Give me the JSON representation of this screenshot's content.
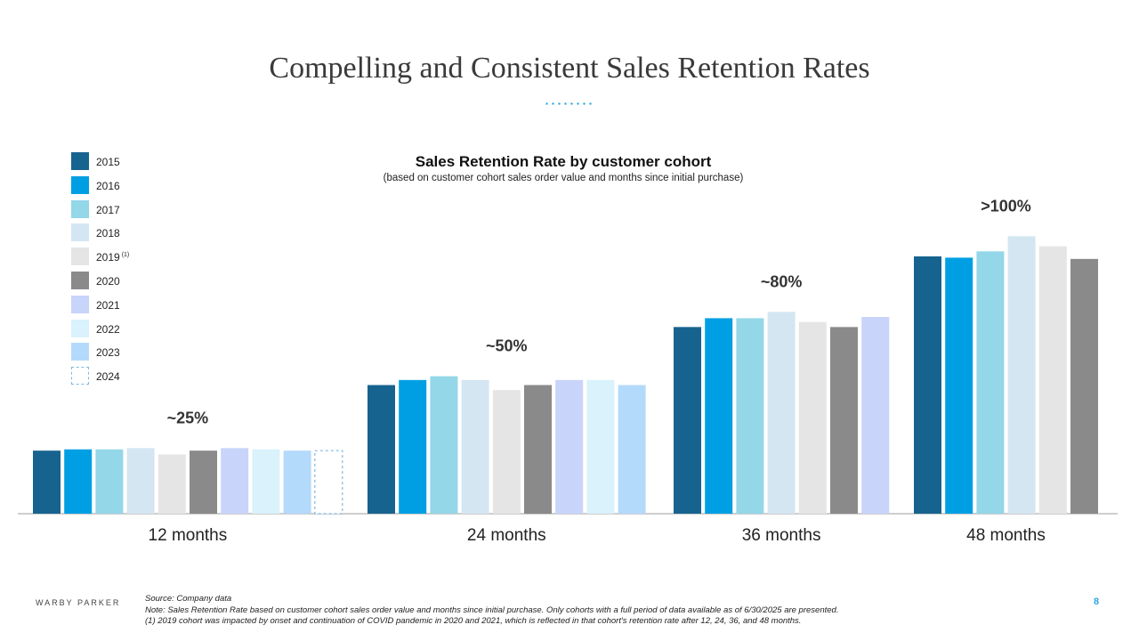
{
  "page_title": "Compelling and Consistent Sales Retention Rates",
  "chart_data": {
    "type": "bar",
    "title": "Sales Retention Rate by customer cohort",
    "subtitle": "(based on customer cohort sales order value and months since initial purchase)",
    "xlabel": "",
    "ylabel": "",
    "ylim": [
      0,
      120
    ],
    "grid": false,
    "legend_position": "left",
    "categories": [
      "12 months",
      "24 months",
      "36 months",
      "48 months"
    ],
    "group_labels": [
      "~25%",
      "~50%",
      "~80%",
      ">100%"
    ],
    "series": [
      {
        "name": "2015",
        "color": "#17638f",
        "values": [
          25,
          51,
          74,
          102
        ]
      },
      {
        "name": "2016",
        "color": "#009fe3",
        "values": [
          25.5,
          53,
          77.5,
          101.5
        ]
      },
      {
        "name": "2017",
        "color": "#93d7e8",
        "values": [
          25.5,
          54.5,
          77.5,
          104
        ]
      },
      {
        "name": "2018",
        "color": "#d4e6f2",
        "values": [
          26,
          53,
          80,
          110
        ]
      },
      {
        "name": "2019",
        "note": "(1)",
        "color": "#e5e5e5",
        "values": [
          23.5,
          49,
          76,
          106
        ]
      },
      {
        "name": "2020",
        "color": "#8a8a8a",
        "values": [
          25,
          51,
          74,
          101
        ]
      },
      {
        "name": "2021",
        "color": "#c9d4fb",
        "values": [
          26,
          53,
          78,
          null
        ]
      },
      {
        "name": "2022",
        "color": "#d9f2fb",
        "values": [
          25.5,
          53,
          null,
          null
        ]
      },
      {
        "name": "2023",
        "color": "#b4dafb",
        "values": [
          25,
          51,
          null,
          null
        ]
      },
      {
        "name": "2024",
        "color": "#ffffff",
        "outline": "#7fb8e0",
        "values": [
          25,
          null,
          null,
          null
        ]
      }
    ]
  },
  "footer": {
    "brand": "WARBY PARKER",
    "source": "Source: Company data",
    "note": "Note: Sales Retention Rate based on customer cohort sales order value and months since initial purchase. Only cohorts with a full period of data available as of 6/30/2025 are presented.",
    "footnote": "(1) 2019 cohort was impacted by onset and continuation of COVID pandemic in 2020 and 2021, which is reflected in that cohort's retention rate after 12, 24, 36, and 48 months.",
    "page_number": "8"
  }
}
